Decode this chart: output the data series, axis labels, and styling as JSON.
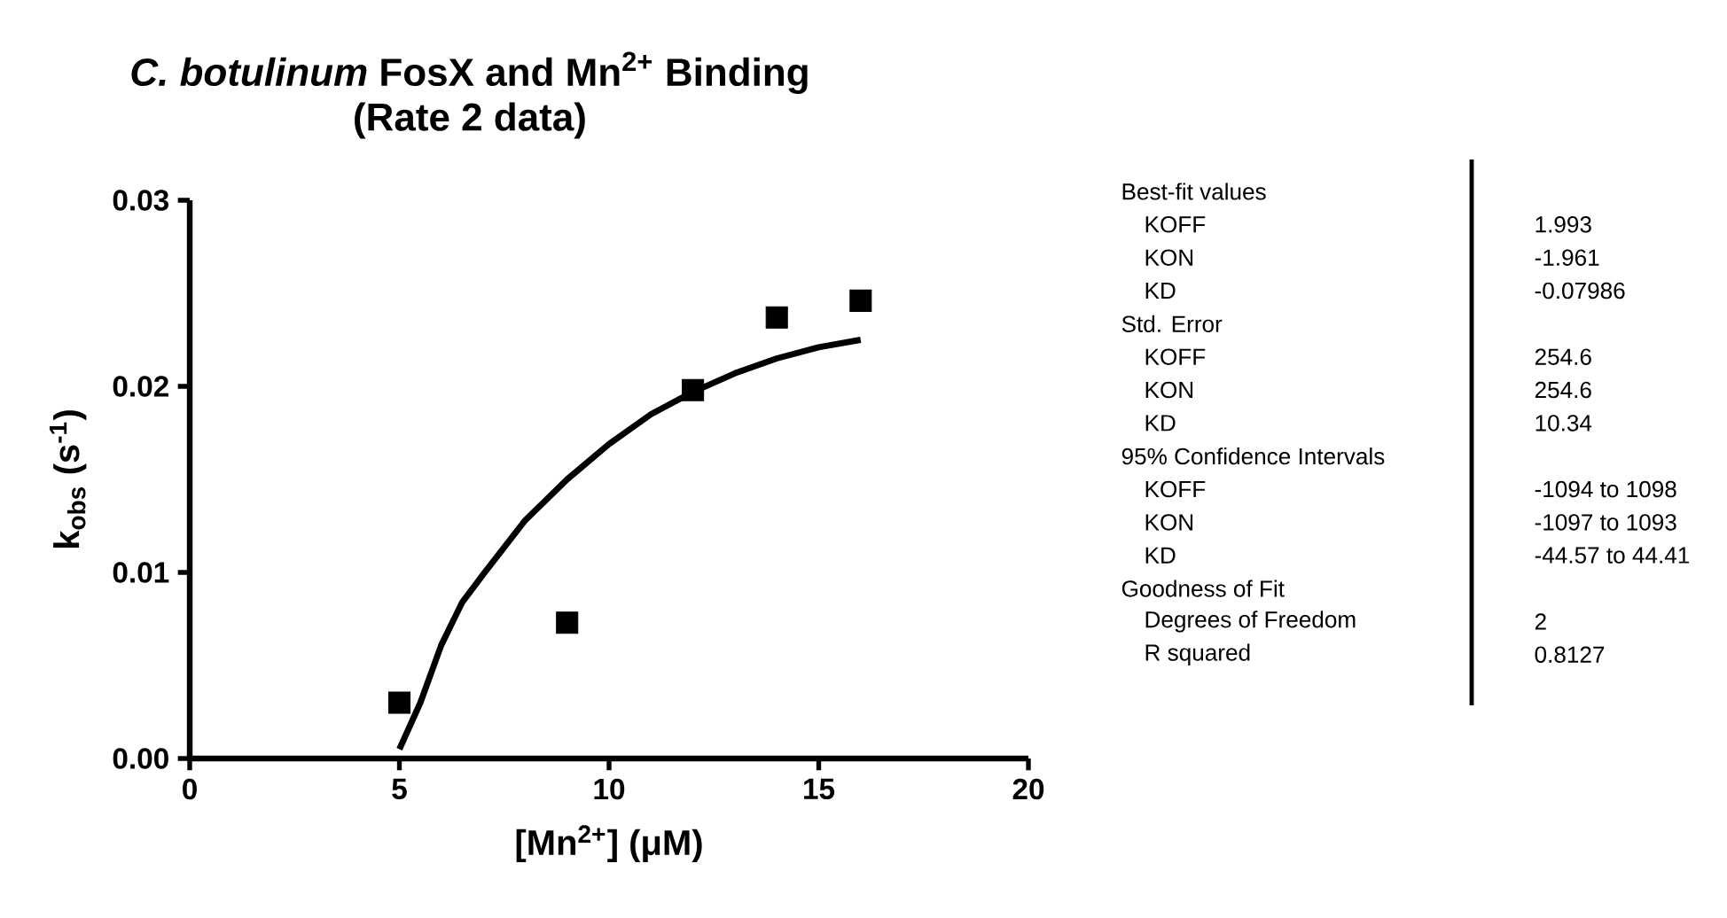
{
  "chart_data": [
    {
      "type": "scatter",
      "title": "*C. botulinum* FosX and Mn$^{2+}$ Binding",
      "subtitle": "(Rate 2 data)",
      "xlabel": "[Mn$^{2+}$] (μM)",
      "ylabel": "k$_{obs}$ (s$^{-1}$)",
      "xlim": [
        0,
        20
      ],
      "xticks": [
        0,
        5,
        10,
        15,
        20
      ],
      "ylim": [
        0,
        0.03
      ],
      "yticks": [
        {
          "value": 0,
          "label": "0.00"
        },
        {
          "value": 0.01,
          "label": "0.01"
        },
        {
          "value": 0.02,
          "label": "0.02"
        },
        {
          "value": 0.03,
          "label": "0.03"
        }
      ],
      "series": [
        {
          "type": "scatter",
          "marker": "square",
          "color": "#000000",
          "x": [
            5,
            9,
            12,
            14,
            16
          ],
          "values": [
            0.003,
            0.0073,
            0.0198,
            0.0237,
            0.0246
          ]
        },
        {
          "type": "line",
          "marker": "none",
          "line_style": "solid",
          "color": "#000000",
          "x": [
            5,
            5.5,
            6,
            6.5,
            7,
            8,
            9,
            10,
            11,
            12,
            13,
            14,
            15,
            16
          ],
          "values": [
            0.0005,
            0.003,
            0.0061,
            0.0084,
            0.0099,
            0.0128,
            0.015,
            0.0169,
            0.0185,
            0.0197,
            0.0207,
            0.0215,
            0.0221,
            0.0225
          ]
        }
      ]
    },
    {
      "type": "other",
      "categories": [
        "Best-fit values",
        "KOFF",
        "KON",
        "KD",
        "Std. Error",
        "KOFF",
        "KON",
        "KD",
        "95% Confidence Intervals",
        "KOFF",
        "KON",
        "KD",
        "Goodness of Fit",
        "Degrees of Freedom",
        "R squared"
      ],
      "value_labels": [
        null,
        "1.993",
        "-1.961",
        "-0.07986",
        null,
        "254.6",
        "254.6",
        "10.34",
        null,
        "-1094 to 1098",
        "-1097 to 1093",
        "-44.57 to 44.41",
        null,
        "2",
        "0.8127"
      ]
    }
  ]
}
